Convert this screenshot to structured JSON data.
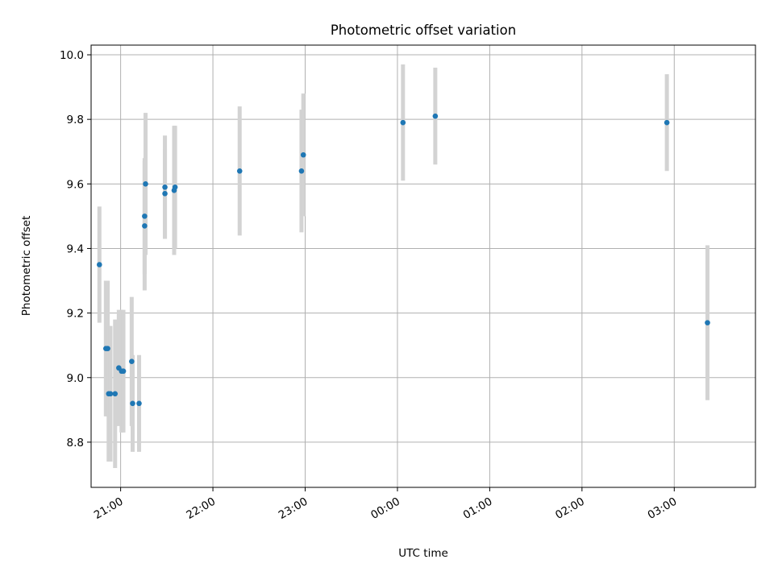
{
  "chart_data": {
    "type": "scatter",
    "title": "Photometric offset variation",
    "xlabel": "UTC time",
    "ylabel": "Photometric offset",
    "x_origin_label": "20:00",
    "x_unit": "hours since 20:00 UTC",
    "xlim": [
      0.68,
      7.88
    ],
    "ylim": [
      8.66,
      10.03
    ],
    "xticks": [
      {
        "value": 1,
        "label": "21:00"
      },
      {
        "value": 2,
        "label": "22:00"
      },
      {
        "value": 3,
        "label": "23:00"
      },
      {
        "value": 4,
        "label": "00:00"
      },
      {
        "value": 5,
        "label": "01:00"
      },
      {
        "value": 6,
        "label": "02:00"
      },
      {
        "value": 7,
        "label": "03:00"
      }
    ],
    "yticks": [
      {
        "value": 8.8,
        "label": "8.8"
      },
      {
        "value": 9.0,
        "label": "9.0"
      },
      {
        "value": 9.2,
        "label": "9.2"
      },
      {
        "value": 9.4,
        "label": "9.4"
      },
      {
        "value": 9.6,
        "label": "9.6"
      },
      {
        "value": 9.8,
        "label": "9.8"
      },
      {
        "value": 10.0,
        "label": "10.0"
      }
    ],
    "grid": true,
    "legend": "none",
    "point_color": "#1f77b4",
    "errorbar_color": "#d3d3d3",
    "points": [
      {
        "x": 0.77,
        "y": 9.35,
        "err": 0.18
      },
      {
        "x": 0.84,
        "y": 9.09,
        "err": 0.21
      },
      {
        "x": 0.86,
        "y": 9.09,
        "err": 0.21
      },
      {
        "x": 0.87,
        "y": 8.95,
        "err": 0.21
      },
      {
        "x": 0.89,
        "y": 8.95,
        "err": 0.21
      },
      {
        "x": 0.94,
        "y": 8.95,
        "err": 0.23
      },
      {
        "x": 0.98,
        "y": 9.03,
        "err": 0.18
      },
      {
        "x": 1.01,
        "y": 9.02,
        "err": 0.19
      },
      {
        "x": 1.03,
        "y": 9.02,
        "err": 0.19
      },
      {
        "x": 1.12,
        "y": 9.05,
        "err": 0.2
      },
      {
        "x": 1.13,
        "y": 8.92,
        "err": 0.15
      },
      {
        "x": 1.2,
        "y": 8.92,
        "err": 0.15
      },
      {
        "x": 1.26,
        "y": 9.5,
        "err": 0.18
      },
      {
        "x": 1.26,
        "y": 9.47,
        "err": 0.2
      },
      {
        "x": 1.27,
        "y": 9.6,
        "err": 0.22
      },
      {
        "x": 1.48,
        "y": 9.59,
        "err": 0.16
      },
      {
        "x": 1.48,
        "y": 9.57,
        "err": 0.14
      },
      {
        "x": 1.58,
        "y": 9.58,
        "err": 0.2
      },
      {
        "x": 1.59,
        "y": 9.59,
        "err": 0.19
      },
      {
        "x": 2.29,
        "y": 9.64,
        "err": 0.2
      },
      {
        "x": 2.96,
        "y": 9.64,
        "err": 0.19
      },
      {
        "x": 2.98,
        "y": 9.69,
        "err": 0.19
      },
      {
        "x": 4.06,
        "y": 9.79,
        "err": 0.18
      },
      {
        "x": 4.41,
        "y": 9.81,
        "err": 0.15
      },
      {
        "x": 6.92,
        "y": 9.79,
        "err": 0.15
      },
      {
        "x": 7.36,
        "y": 9.17,
        "err": 0.24
      }
    ]
  }
}
